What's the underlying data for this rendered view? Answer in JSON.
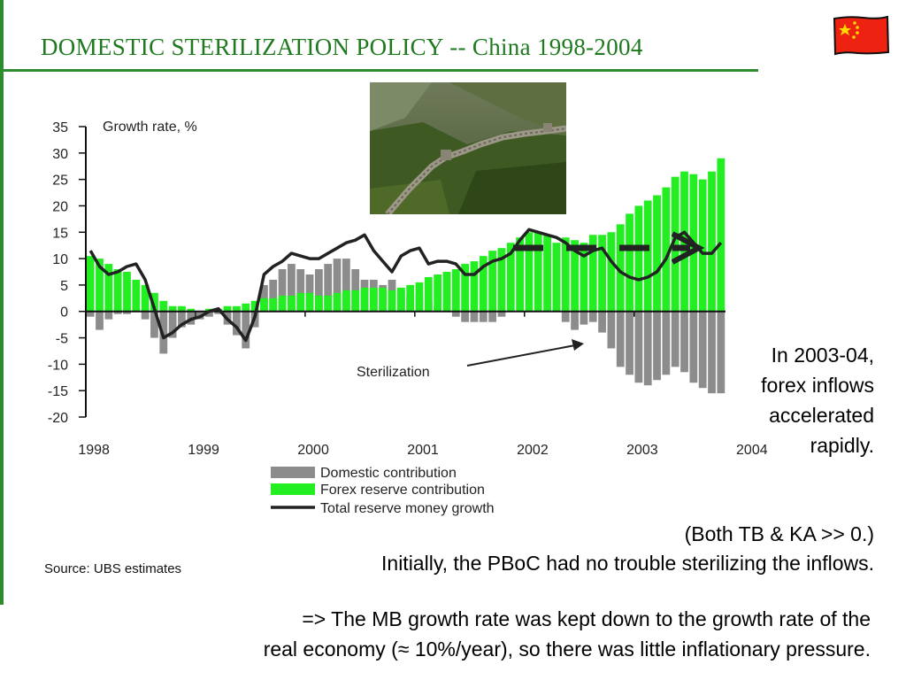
{
  "slide": {
    "title_main": "DOMESTIC STERILIZATION POLICY",
    "title_sub": "-- China 1998-2004",
    "flag_icon": "china-flag-icon",
    "photo_icon": "great-wall-photo",
    "side_note": "In 2003-04, forex inflows accelerated rapidly.",
    "note_line2": "(Both TB & KA  >> 0.)",
    "note_line3": "Initially, the PBoC had no trouble sterilizing the inflows.",
    "conclusion_line1": "=>  The MB growth rate was kept down to the growth rate of the",
    "conclusion_line2": "real economy (≈ 10%/year), so there was little inflationary pressure.",
    "source": "Source: UBS estimates"
  },
  "chart_data": {
    "type": "bar",
    "ylabel": "Growth rate, %",
    "ylim": [
      -20,
      35
    ],
    "yticks": [
      35,
      30,
      25,
      20,
      15,
      10,
      5,
      0,
      -5,
      -10,
      -15,
      -20
    ],
    "x_labels": [
      "1998",
      "1999",
      "2000",
      "2001",
      "2002",
      "2003",
      "2004"
    ],
    "annotation": "Sterilization",
    "colors": {
      "domestic": "#8c8c8c",
      "forex": "#22ee22",
      "total": "#222222"
    },
    "series": [
      {
        "name": "Domestic contribution",
        "type": "bar",
        "values": [
          -1,
          -3.5,
          -1.5,
          -0.5,
          -0.5,
          0,
          -1.5,
          -5,
          -8,
          -5,
          -3,
          -2.5,
          -1.5,
          -1,
          -0.5,
          -2.5,
          -4.5,
          -7,
          -3,
          5,
          6,
          8,
          9,
          8,
          7,
          8,
          9,
          10,
          10,
          8,
          6,
          6,
          5,
          6,
          4,
          3,
          3,
          2,
          1,
          0,
          -1,
          -2,
          -2,
          -2,
          -2,
          -1,
          0,
          0,
          0,
          0,
          0,
          0,
          -2,
          -3.5,
          -2.5,
          -2,
          -4,
          -7,
          -10.5,
          -12,
          -13.5,
          -14,
          -13,
          -12,
          -10.5,
          -11.5,
          -13.5,
          -14.5,
          -15.5,
          -15.5
        ]
      },
      {
        "name": "Forex reserve contribution",
        "type": "bar",
        "values": [
          10.5,
          10,
          9,
          8,
          7.5,
          6,
          5,
          3.5,
          2,
          1,
          1,
          0.5,
          0,
          0.5,
          0.5,
          1,
          1,
          1.5,
          2,
          2.5,
          2.5,
          3,
          3,
          3.5,
          3.5,
          3,
          3,
          3.5,
          4,
          4,
          4.5,
          4.5,
          4.5,
          4,
          4.5,
          5,
          5.5,
          6.5,
          7,
          7.5,
          8,
          9,
          9.5,
          10.5,
          11.5,
          12,
          13,
          14,
          15,
          15,
          14.5,
          13,
          14,
          13.5,
          13,
          14.5,
          14.5,
          15,
          16.5,
          18.5,
          20,
          21,
          22,
          23.5,
          25.5,
          26.5,
          26,
          25,
          26.5,
          29
        ]
      },
      {
        "name": "Total reserve money growth",
        "type": "line",
        "values": [
          11.5,
          8.5,
          7,
          7.5,
          8.5,
          9,
          6,
          0.5,
          -5,
          -4,
          -2.5,
          -1.5,
          -1,
          0,
          0.5,
          -1.5,
          -3,
          -5.5,
          -1,
          7,
          8.5,
          9.5,
          11,
          10.5,
          10,
          10,
          11,
          12,
          13,
          13.5,
          14.5,
          11.5,
          9.5,
          7.5,
          10.5,
          11.5,
          12,
          9,
          9.5,
          9.5,
          9,
          7,
          7,
          8.5,
          9.5,
          10,
          11,
          13.5,
          15.5,
          15,
          14.5,
          14,
          13,
          11.5,
          10.5,
          11.5,
          12,
          9.5,
          7.5,
          6.5,
          6,
          6.5,
          7.5,
          10,
          14,
          15,
          13,
          11,
          11,
          13
        ]
      }
    ]
  }
}
